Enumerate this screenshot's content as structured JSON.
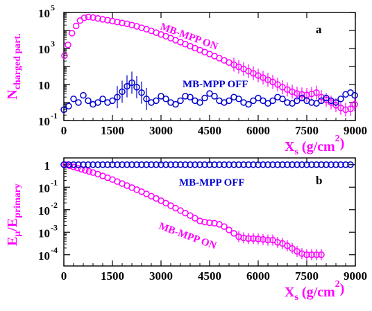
{
  "figure": {
    "panels": [
      {
        "id": "a",
        "panel_label": "a",
        "xlabel_main": "X",
        "xlabel_sub": "s",
        "xlabel_units_pre": " (g/cm",
        "xlabel_units_sup": "2",
        "xlabel_units_post": ")",
        "ylabel_main": "N",
        "ylabel_sub": "charged part.",
        "magenta_label": "MB-MPP ON",
        "blue_label": "MB-MPP OFF"
      },
      {
        "id": "b",
        "panel_label": "b",
        "xlabel_main": "X",
        "xlabel_sub": "s",
        "xlabel_units_pre": " (g/cm",
        "xlabel_units_sup": "2",
        "xlabel_units_post": ")",
        "ylabel_main": "E",
        "ylabel_sub1": "μ",
        "ylabel_mid": "/E",
        "ylabel_sub2": "primary",
        "magenta_label": "MB-MPP ON",
        "blue_label": "MB-MPP OFF"
      }
    ],
    "colors": {
      "magenta": "#ff00ff",
      "blue": "#0000cc",
      "axis": "#000000"
    }
  },
  "chart_data": [
    {
      "type": "scatter",
      "panel": "a",
      "xlim": [
        0,
        9000
      ],
      "ylim_log10": [
        -1,
        5
      ],
      "log_y": true,
      "x_ticks": [
        "0",
        "1500",
        "3000",
        "4500",
        "6000",
        "7500",
        "9000"
      ],
      "y_ticks": [
        {
          "base": "10",
          "exp": "-1",
          "log10": -1
        },
        {
          "base": "10",
          "exp": "",
          "log10": 1
        },
        {
          "base": "10",
          "exp": "3",
          "log10": 3
        },
        {
          "base": "10",
          "exp": "5",
          "log10": 5
        }
      ],
      "series": [
        {
          "name": "MB-MPP ON",
          "color": "#ff00ff",
          "points": [
            [
              20,
              2.6
            ],
            [
              130,
              3.2
            ],
            [
              250,
              3.85
            ],
            [
              380,
              4.25
            ],
            [
              500,
              4.55
            ],
            [
              630,
              4.7
            ],
            [
              760,
              4.75
            ],
            [
              900,
              4.72
            ],
            [
              1050,
              4.67
            ],
            [
              1200,
              4.62
            ],
            [
              1350,
              4.57
            ],
            [
              1500,
              4.52
            ],
            [
              1650,
              4.47
            ],
            [
              1800,
              4.42
            ],
            [
              1950,
              4.37
            ],
            [
              2100,
              4.3
            ],
            [
              2250,
              4.23
            ],
            [
              2400,
              4.15
            ],
            [
              2550,
              4.07
            ],
            [
              2700,
              3.98
            ],
            [
              2850,
              3.88
            ],
            [
              3000,
              3.78
            ],
            [
              3150,
              3.68
            ],
            [
              3300,
              3.57
            ],
            [
              3450,
              3.46
            ],
            [
              3600,
              3.35
            ],
            [
              3750,
              3.24
            ],
            [
              3900,
              3.13
            ],
            [
              4050,
              3.02
            ],
            [
              4200,
              2.91
            ],
            [
              4350,
              2.8
            ],
            [
              4500,
              2.69
            ],
            [
              4650,
              2.58
            ],
            [
              4800,
              2.46
            ],
            [
              4950,
              2.34
            ],
            [
              5100,
              2.22
            ],
            [
              5250,
              2.1
            ],
            [
              5400,
              1.98
            ],
            [
              5550,
              1.86
            ],
            [
              5700,
              1.74
            ],
            [
              5850,
              1.62
            ],
            [
              6000,
              1.5
            ],
            [
              6150,
              1.38
            ],
            [
              6300,
              1.26
            ],
            [
              6450,
              1.14
            ],
            [
              6600,
              1.0
            ],
            [
              6750,
              0.85
            ],
            [
              6900,
              0.72
            ],
            [
              7050,
              0.6
            ],
            [
              7200,
              0.5
            ],
            [
              7350,
              0.45
            ],
            [
              7500,
              0.42
            ],
            [
              7650,
              0.48
            ],
            [
              7800,
              0.55
            ],
            [
              7950,
              0.3
            ],
            [
              8100,
              0.15
            ],
            [
              8250,
              0.0
            ],
            [
              8400,
              -0.15
            ],
            [
              8550,
              -0.3
            ],
            [
              8700,
              -0.4
            ],
            [
              8850,
              -0.35
            ],
            [
              8980,
              -0.1
            ]
          ]
        },
        {
          "name": "MB-MPP OFF",
          "color": "#0000cc",
          "points": [
            [
              0,
              -0.4
            ],
            [
              150,
              -0.2
            ],
            [
              300,
              0.2
            ],
            [
              450,
              0.0
            ],
            [
              600,
              0.4
            ],
            [
              750,
              0.1
            ],
            [
              900,
              -0.1
            ],
            [
              1050,
              0.0
            ],
            [
              1200,
              0.2
            ],
            [
              1350,
              0.0
            ],
            [
              1500,
              0.1
            ],
            [
              1650,
              0.3
            ],
            [
              1800,
              0.6
            ],
            [
              1950,
              0.9
            ],
            [
              2100,
              1.1
            ],
            [
              2250,
              0.85
            ],
            [
              2400,
              0.55
            ],
            [
              2550,
              0.2
            ],
            [
              2700,
              0.0
            ],
            [
              2850,
              0.1
            ],
            [
              3000,
              0.35
            ],
            [
              3150,
              0.2
            ],
            [
              3300,
              0.0
            ],
            [
              3450,
              -0.1
            ],
            [
              3600,
              0.1
            ],
            [
              3750,
              0.35
            ],
            [
              3900,
              0.3
            ],
            [
              4050,
              0.1
            ],
            [
              4200,
              0.0
            ],
            [
              4350,
              0.25
            ],
            [
              4500,
              0.5
            ],
            [
              4650,
              0.35
            ],
            [
              4800,
              0.1
            ],
            [
              4950,
              0.0
            ],
            [
              5100,
              0.1
            ],
            [
              5250,
              0.3
            ],
            [
              5400,
              0.2
            ],
            [
              5550,
              0.0
            ],
            [
              5700,
              -0.1
            ],
            [
              5850,
              0.1
            ],
            [
              6000,
              0.25
            ],
            [
              6150,
              0.1
            ],
            [
              6300,
              -0.05
            ],
            [
              6450,
              0.1
            ],
            [
              6600,
              0.3
            ],
            [
              6750,
              0.2
            ],
            [
              6900,
              0.0
            ],
            [
              7050,
              -0.05
            ],
            [
              7200,
              0.1
            ],
            [
              7350,
              0.25
            ],
            [
              7500,
              0.1
            ],
            [
              7650,
              0.0
            ],
            [
              7800,
              -0.05
            ],
            [
              7950,
              0.1
            ],
            [
              8100,
              0.25
            ],
            [
              8250,
              0.1
            ],
            [
              8400,
              0.0
            ],
            [
              8550,
              0.2
            ],
            [
              8700,
              0.45
            ],
            [
              8850,
              0.55
            ],
            [
              8980,
              0.4
            ]
          ]
        }
      ]
    },
    {
      "type": "scatter",
      "panel": "b",
      "xlim": [
        0,
        9000
      ],
      "ylim_log10": [
        -4.5,
        0.3
      ],
      "log_y": true,
      "x_ticks": [
        "0",
        "1500",
        "3000",
        "4500",
        "6000",
        "7500",
        "9000"
      ],
      "y_ticks": [
        {
          "base": "1",
          "exp": "",
          "log10": 0
        },
        {
          "base": "10",
          "exp": "-1",
          "log10": -1
        },
        {
          "base": "10",
          "exp": "-2",
          "log10": -2
        },
        {
          "base": "10",
          "exp": "-3",
          "log10": -3
        },
        {
          "base": "10",
          "exp": "-4",
          "log10": -4
        }
      ],
      "series": [
        {
          "name": "MB-MPP ON",
          "color": "#ff00ff",
          "points": [
            [
              60,
              0.0
            ],
            [
              180,
              -0.05
            ],
            [
              300,
              -0.1
            ],
            [
              420,
              -0.15
            ],
            [
              540,
              -0.2
            ],
            [
              660,
              -0.25
            ],
            [
              780,
              -0.3
            ],
            [
              900,
              -0.35
            ],
            [
              1050,
              -0.42
            ],
            [
              1200,
              -0.5
            ],
            [
              1350,
              -0.58
            ],
            [
              1500,
              -0.66
            ],
            [
              1650,
              -0.75
            ],
            [
              1800,
              -0.84
            ],
            [
              1950,
              -0.93
            ],
            [
              2100,
              -1.02
            ],
            [
              2250,
              -1.11
            ],
            [
              2400,
              -1.2
            ],
            [
              2550,
              -1.3
            ],
            [
              2700,
              -1.4
            ],
            [
              2850,
              -1.5
            ],
            [
              3000,
              -1.6
            ],
            [
              3150,
              -1.71
            ],
            [
              3300,
              -1.82
            ],
            [
              3450,
              -1.93
            ],
            [
              3600,
              -2.04
            ],
            [
              3750,
              -2.15
            ],
            [
              3900,
              -2.26
            ],
            [
              4050,
              -2.38
            ],
            [
              4200,
              -2.5
            ],
            [
              4350,
              -2.55
            ],
            [
              4500,
              -2.58
            ],
            [
              4650,
              -2.6
            ],
            [
              4800,
              -2.65
            ],
            [
              4950,
              -2.75
            ],
            [
              5100,
              -2.9
            ],
            [
              5250,
              -3.05
            ],
            [
              5400,
              -3.2
            ],
            [
              5550,
              -3.25
            ],
            [
              5700,
              -3.28
            ],
            [
              5850,
              -3.28
            ],
            [
              6000,
              -3.3
            ],
            [
              6150,
              -3.32
            ],
            [
              6300,
              -3.35
            ],
            [
              6450,
              -3.35
            ],
            [
              6600,
              -3.45
            ],
            [
              6750,
              -3.5
            ],
            [
              6900,
              -3.6
            ],
            [
              7050,
              -3.72
            ],
            [
              7200,
              -3.85
            ],
            [
              7350,
              -3.95
            ],
            [
              7500,
              -4.0
            ],
            [
              7650,
              -4.0
            ],
            [
              7800,
              -4.0
            ],
            [
              7950,
              -4.0
            ]
          ]
        },
        {
          "name": "MB-MPP OFF",
          "color": "#0000cc",
          "points": [
            [
              0,
              0.0
            ],
            [
              150,
              0.0
            ],
            [
              300,
              0.0
            ],
            [
              450,
              0.0
            ],
            [
              600,
              0.0
            ],
            [
              750,
              0.0
            ],
            [
              900,
              0.0
            ],
            [
              1050,
              0.0
            ],
            [
              1200,
              0.0
            ],
            [
              1350,
              0.0
            ],
            [
              1500,
              0.0
            ],
            [
              1650,
              0.0
            ],
            [
              1800,
              0.0
            ],
            [
              1950,
              0.0
            ],
            [
              2100,
              0.0
            ],
            [
              2250,
              0.0
            ],
            [
              2400,
              0.0
            ],
            [
              2550,
              0.0
            ],
            [
              2700,
              0.0
            ],
            [
              2850,
              0.0
            ],
            [
              3000,
              0.0
            ],
            [
              3150,
              0.0
            ],
            [
              3300,
              0.0
            ],
            [
              3450,
              0.0
            ],
            [
              3600,
              0.0
            ],
            [
              3750,
              0.0
            ],
            [
              3900,
              0.0
            ],
            [
              4050,
              0.0
            ],
            [
              4200,
              0.0
            ],
            [
              4350,
              0.0
            ],
            [
              4500,
              0.0
            ],
            [
              4650,
              0.0
            ],
            [
              4800,
              0.0
            ],
            [
              4950,
              0.0
            ],
            [
              5100,
              0.0
            ],
            [
              5250,
              0.0
            ],
            [
              5400,
              0.0
            ],
            [
              5550,
              0.0
            ],
            [
              5700,
              0.0
            ],
            [
              5850,
              0.0
            ],
            [
              6000,
              0.0
            ],
            [
              6150,
              0.0
            ],
            [
              6300,
              0.0
            ],
            [
              6450,
              0.0
            ],
            [
              6600,
              0.0
            ],
            [
              6750,
              0.0
            ],
            [
              6900,
              0.0
            ],
            [
              7050,
              0.0
            ],
            [
              7200,
              0.0
            ],
            [
              7350,
              0.0
            ],
            [
              7500,
              0.0
            ],
            [
              7650,
              0.0
            ],
            [
              7800,
              0.0
            ],
            [
              7950,
              0.0
            ],
            [
              8100,
              0.0
            ],
            [
              8250,
              0.0
            ],
            [
              8400,
              0.0
            ],
            [
              8550,
              0.0
            ],
            [
              8700,
              0.0
            ],
            [
              8850,
              0.0
            ]
          ]
        }
      ]
    }
  ]
}
